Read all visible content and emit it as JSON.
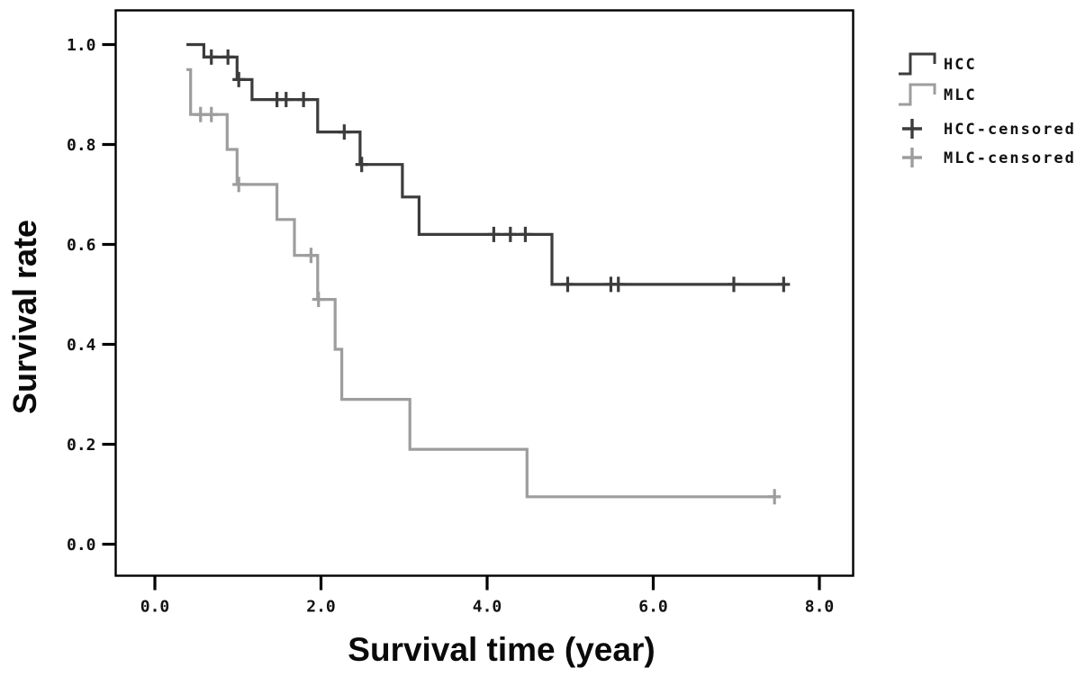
{
  "figure": {
    "background_color": "#ffffff",
    "frame_color": "#000000"
  },
  "chart_data": {
    "type": "line",
    "variant": "kaplan-meier-step",
    "title": "",
    "xlabel": "Survival time (year)",
    "ylabel": "Survival rate",
    "xlim": [
      -0.48,
      8.4
    ],
    "ylim": [
      -0.065,
      1.07
    ],
    "grid": false,
    "legend_position": "top-right-outside",
    "x_ticks": [
      {
        "value": 0,
        "label": "0.0"
      },
      {
        "value": 2,
        "label": "2.0"
      },
      {
        "value": 4,
        "label": "4.0"
      },
      {
        "value": 6,
        "label": "6.0"
      },
      {
        "value": 8,
        "label": "8.0"
      }
    ],
    "y_ticks": [
      {
        "value": 0.0,
        "label": "0.0"
      },
      {
        "value": 0.2,
        "label": "0.2"
      },
      {
        "value": 0.4,
        "label": "0.4"
      },
      {
        "value": 0.6,
        "label": "0.6"
      },
      {
        "value": 0.8,
        "label": "0.8"
      },
      {
        "value": 1.0,
        "label": "1.0"
      }
    ],
    "series": [
      {
        "name": "HCC",
        "color": "#3c3c3c",
        "points": [
          [
            0.38,
            1.0
          ],
          [
            0.59,
            1.0
          ],
          [
            0.59,
            0.975
          ],
          [
            0.99,
            0.975
          ],
          [
            0.99,
            0.93
          ],
          [
            1.17,
            0.93
          ],
          [
            1.17,
            0.89
          ],
          [
            1.96,
            0.89
          ],
          [
            1.96,
            0.825
          ],
          [
            2.47,
            0.825
          ],
          [
            2.47,
            0.76
          ],
          [
            2.98,
            0.76
          ],
          [
            2.98,
            0.695
          ],
          [
            3.18,
            0.695
          ],
          [
            3.18,
            0.62
          ],
          [
            4.78,
            0.62
          ],
          [
            4.78,
            0.52
          ],
          [
            7.59,
            0.52
          ]
        ],
        "censored": [
          [
            0.68,
            0.975
          ],
          [
            0.88,
            0.975
          ],
          [
            1.01,
            0.93
          ],
          [
            1.47,
            0.89
          ],
          [
            1.58,
            0.89
          ],
          [
            1.79,
            0.89
          ],
          [
            2.28,
            0.825
          ],
          [
            2.49,
            0.76
          ],
          [
            4.08,
            0.62
          ],
          [
            4.28,
            0.62
          ],
          [
            4.46,
            0.62
          ],
          [
            4.97,
            0.52
          ],
          [
            5.49,
            0.52
          ],
          [
            5.58,
            0.52
          ],
          [
            6.97,
            0.52
          ],
          [
            7.57,
            0.52
          ]
        ]
      },
      {
        "name": "MLC",
        "color": "#9d9d9d",
        "points": [
          [
            0.38,
            0.95
          ],
          [
            0.43,
            0.95
          ],
          [
            0.43,
            0.86
          ],
          [
            0.87,
            0.86
          ],
          [
            0.87,
            0.79
          ],
          [
            0.99,
            0.79
          ],
          [
            0.99,
            0.72
          ],
          [
            1.47,
            0.72
          ],
          [
            1.47,
            0.65
          ],
          [
            1.68,
            0.65
          ],
          [
            1.68,
            0.578
          ],
          [
            1.96,
            0.578
          ],
          [
            1.96,
            0.49
          ],
          [
            2.17,
            0.49
          ],
          [
            2.17,
            0.39
          ],
          [
            2.25,
            0.39
          ],
          [
            2.25,
            0.29
          ],
          [
            3.07,
            0.29
          ],
          [
            3.07,
            0.19
          ],
          [
            4.48,
            0.19
          ],
          [
            4.48,
            0.095
          ],
          [
            7.48,
            0.095
          ]
        ],
        "censored": [
          [
            0.55,
            0.86
          ],
          [
            0.68,
            0.86
          ],
          [
            1.01,
            0.72
          ],
          [
            1.88,
            0.578
          ],
          [
            1.97,
            0.49
          ],
          [
            7.46,
            0.095
          ]
        ]
      }
    ],
    "legend": {
      "entries": [
        {
          "label": "HCC",
          "symbol": "step",
          "color": "#3c3c3c"
        },
        {
          "label": "MLC",
          "symbol": "step",
          "color": "#9d9d9d"
        },
        {
          "label": "HCC-censored",
          "symbol": "plus",
          "color": "#3c3c3c"
        },
        {
          "label": "MLC-censored",
          "symbol": "plus",
          "color": "#9d9d9d"
        }
      ]
    }
  }
}
